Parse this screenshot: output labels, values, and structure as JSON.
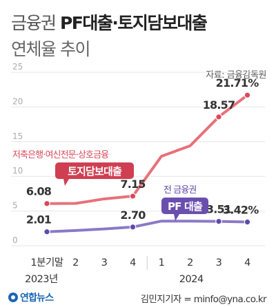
{
  "header": {
    "title_light": "금융권 ",
    "title_bold": "PF대출·토지담보대출",
    "subtitle": "연체율 추이",
    "source": "자료: 금융감독원"
  },
  "footer": {
    "logo": "연합뉴스",
    "credit": "김민지기자 = minfo@yna.co.kr"
  },
  "colors": {
    "land_line": "#e8707a",
    "land_dot": "#d9495a",
    "land_label_bg": "#cf3f51",
    "pf_line": "#8a79c8",
    "pf_dot": "#5e4aa8",
    "pf_label_bg": "#6a4fae",
    "grid": "#e6e6e6",
    "value_text": "#333333"
  },
  "chart_data": {
    "type": "line",
    "ylim": [
      0,
      25
    ],
    "yticks": [
      0,
      5,
      10,
      15,
      20,
      25
    ],
    "categories": [
      "1분기말",
      "2",
      "3",
      "4",
      "1",
      "2",
      "3",
      "4"
    ],
    "year_labels": [
      "2023년",
      "2024"
    ],
    "grid": true,
    "series": [
      {
        "key": "land",
        "name": "토지담보대출",
        "note": "저축은행·여신전문·상호금융",
        "values": [
          6.08,
          6.1,
          6.75,
          7.15,
          12.9,
          14.4,
          18.57,
          21.71
        ],
        "labels": [
          "6.08",
          "",
          "",
          "7.15",
          "",
          "",
          "18.57",
          "21.71%"
        ]
      },
      {
        "key": "pf",
        "name": "PF 대출",
        "note": "전 금융권",
        "values": [
          2.01,
          2.2,
          2.42,
          2.7,
          3.55,
          3.55,
          3.51,
          3.42
        ],
        "labels": [
          "2.01",
          "",
          "",
          "2.70",
          "",
          "",
          "3.51",
          "3.42%"
        ]
      }
    ]
  }
}
